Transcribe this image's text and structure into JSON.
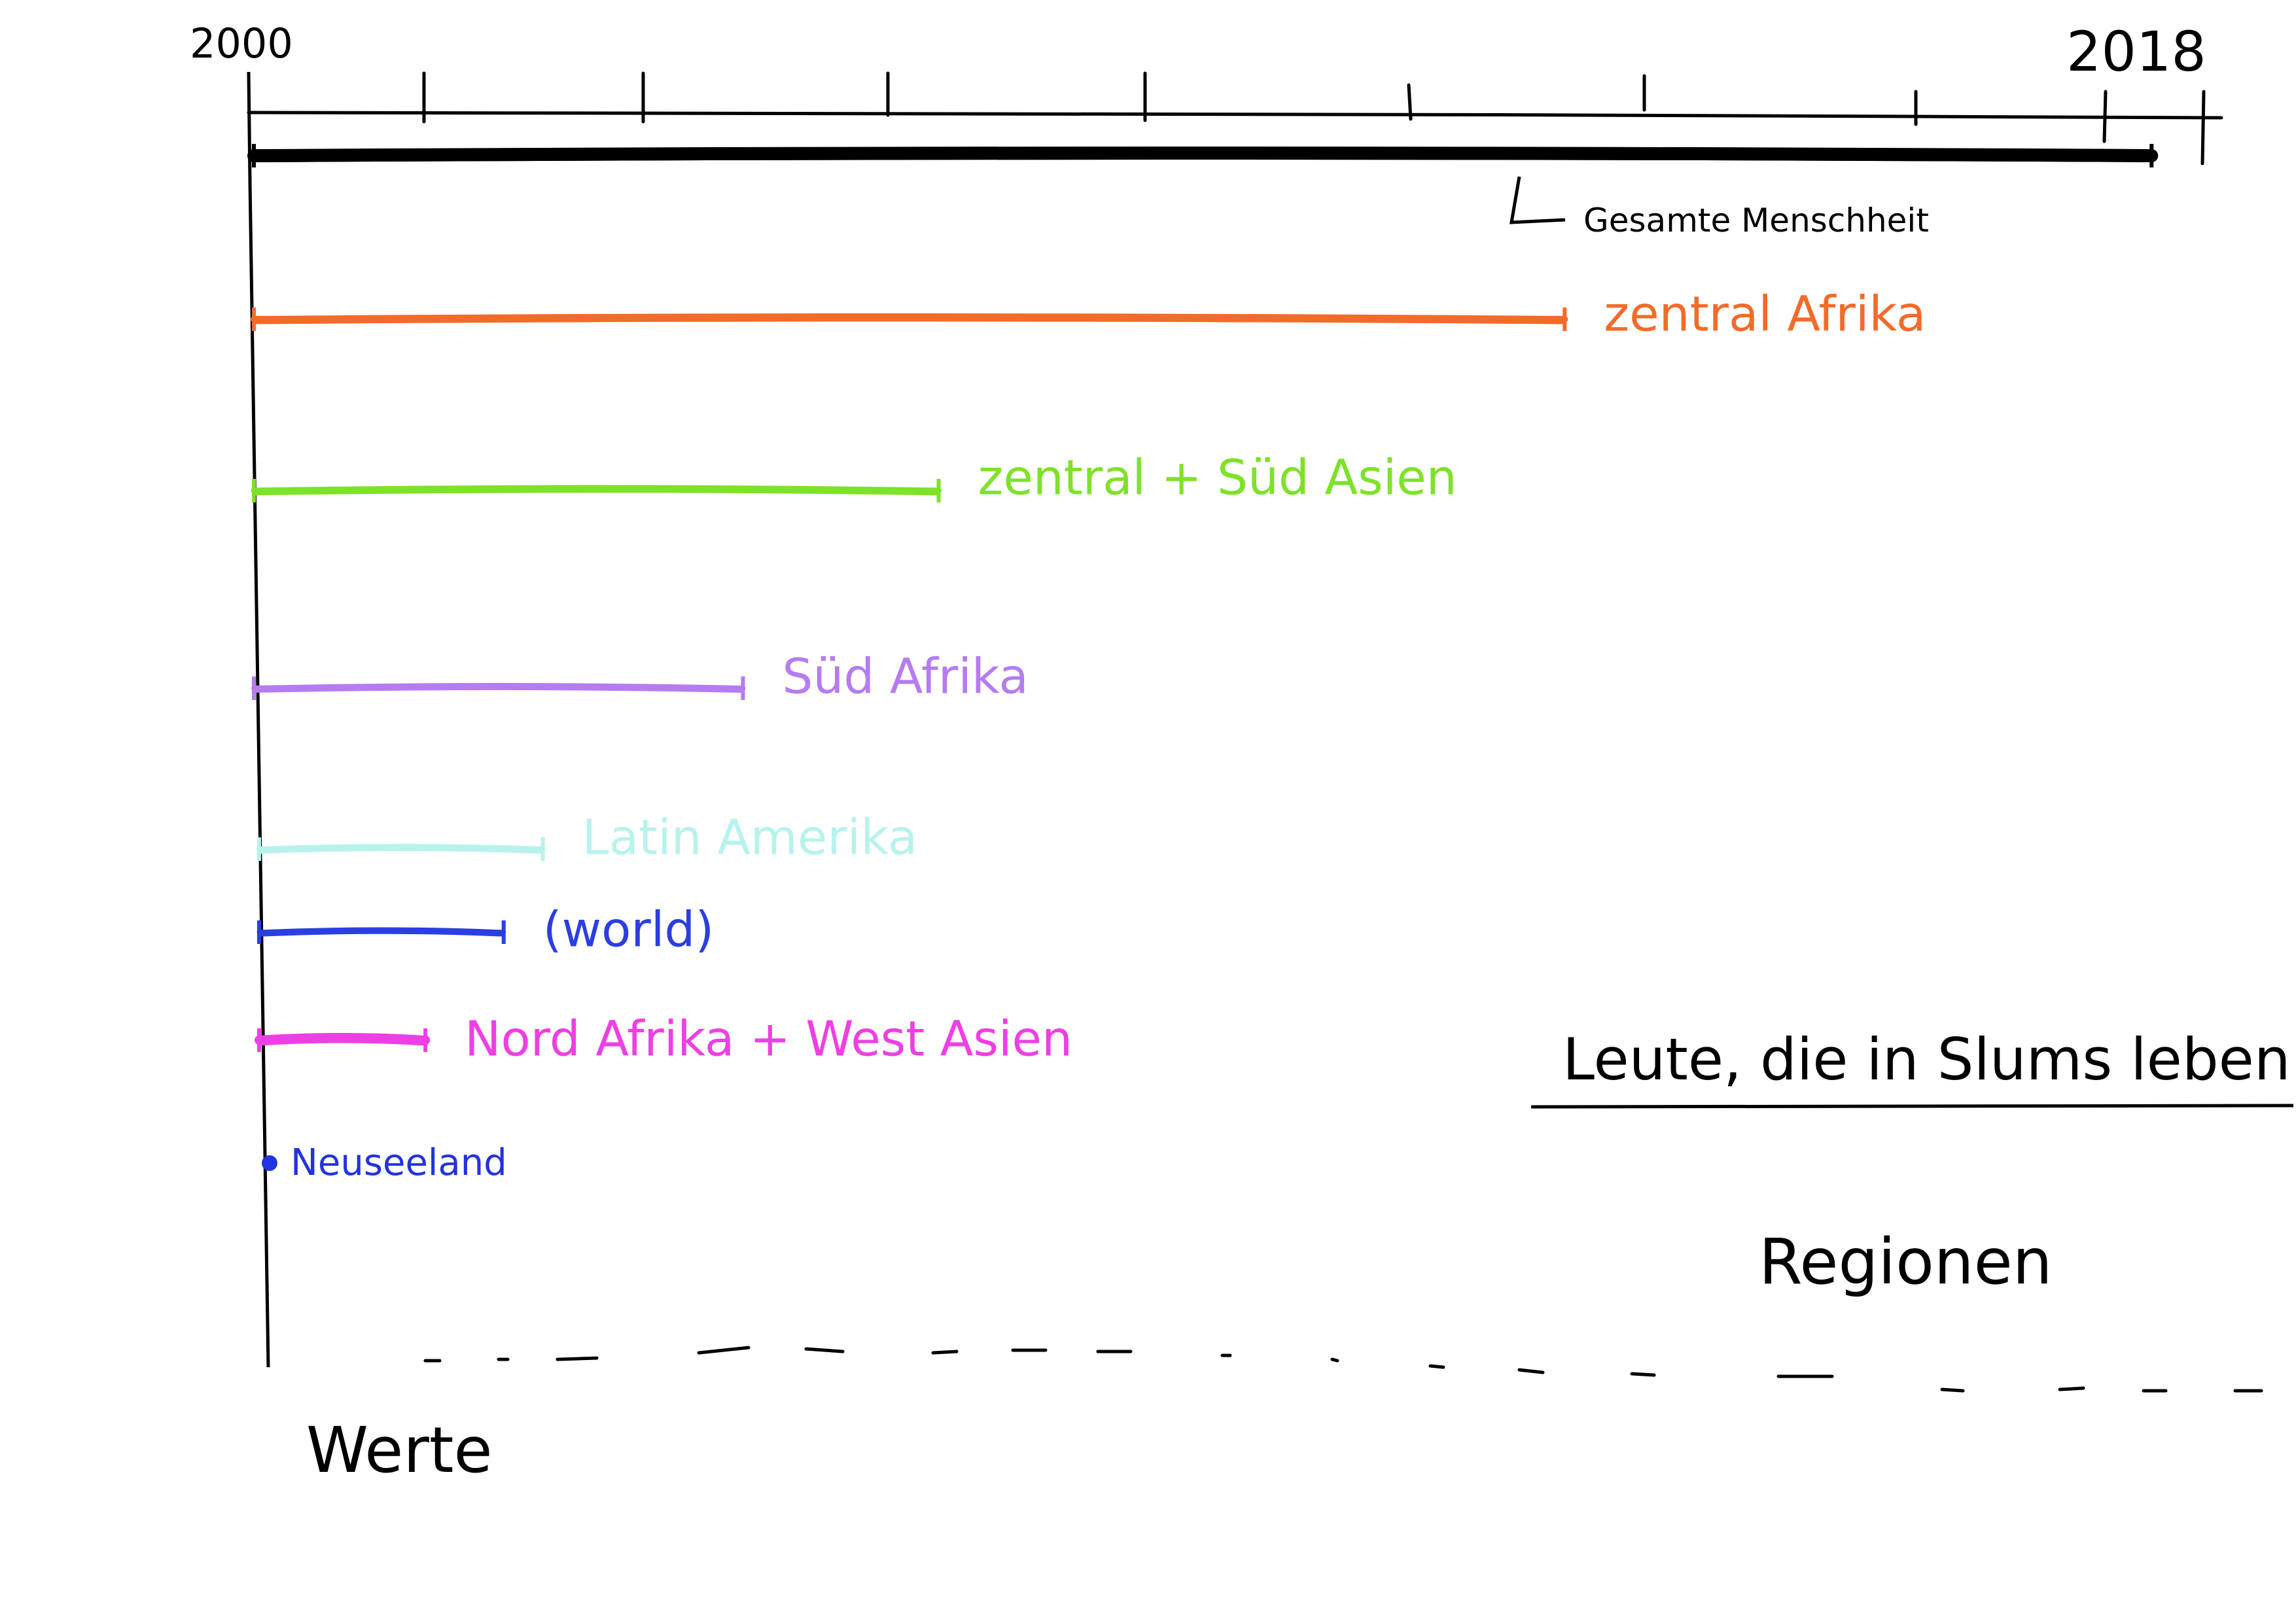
{
  "axis": {
    "start_label": "2000",
    "end_label": "2018",
    "y_label": "Werte"
  },
  "legend": {
    "title": "Leute, die in Slums leben",
    "subtitle": "Regionen"
  },
  "colors": {
    "axis": "#000000",
    "gesamte": "#000000",
    "zentral_afrika": "#f26b2a",
    "zentral_sued_asien": "#7de22a",
    "sued_afrika": "#b57cf0",
    "latin_amerika": "#b7f3ec",
    "world": "#2b3fe0",
    "nord_afrika": "#ee3fe4",
    "neuseeland": "#2233dd"
  },
  "bars": [
    {
      "key": "gesamte",
      "label": "Gesamte Menschheit",
      "value": 0.97
    },
    {
      "key": "zentral_afrika",
      "label": "zentral Afrika",
      "value": 0.67
    },
    {
      "key": "zentral_sued_asien",
      "label": "zentral + Süd Asien",
      "value": 0.35
    },
    {
      "key": "sued_afrika",
      "label": "Süd Afrika",
      "value": 0.25
    },
    {
      "key": "latin_amerika",
      "label": "Latin Amerika",
      "value": 0.145
    },
    {
      "key": "world",
      "label": "(world)",
      "value": 0.125
    },
    {
      "key": "nord_afrika",
      "label": "Nord Afrika + West Asien",
      "value": 0.085
    },
    {
      "key": "neuseeland",
      "label": "Neuseeland",
      "value": 0.005
    }
  ]
}
